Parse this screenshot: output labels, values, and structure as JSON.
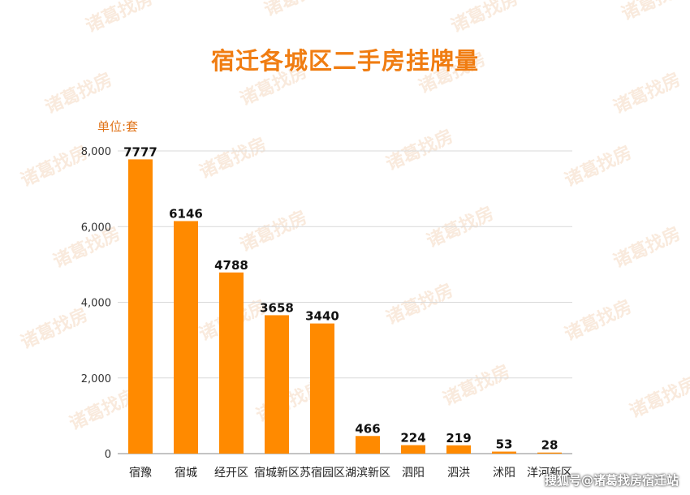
{
  "chart_data": {
    "type": "bar",
    "title": "宿迁各城区二手房挂牌量",
    "unit_label": "单位:套",
    "categories": [
      "宿豫",
      "宿城",
      "经开区",
      "宿城新区",
      "苏宿园区",
      "湖滨新区",
      "泗阳",
      "泗洪",
      "沭阳",
      "洋河新区"
    ],
    "values": [
      7777,
      6146,
      4788,
      3658,
      3440,
      466,
      224,
      219,
      53,
      28
    ],
    "ylim": [
      0,
      8000
    ],
    "yticks": [
      0,
      2000,
      4000,
      6000,
      8000
    ],
    "ytick_labels": [
      "0",
      "2,000",
      "4,000",
      "6,000",
      "8,000"
    ],
    "grid": true,
    "bar_color": "#ff8a00"
  },
  "watermark": "诸葛找房",
  "footer": "搜狐号@诸葛找房宿迁站"
}
